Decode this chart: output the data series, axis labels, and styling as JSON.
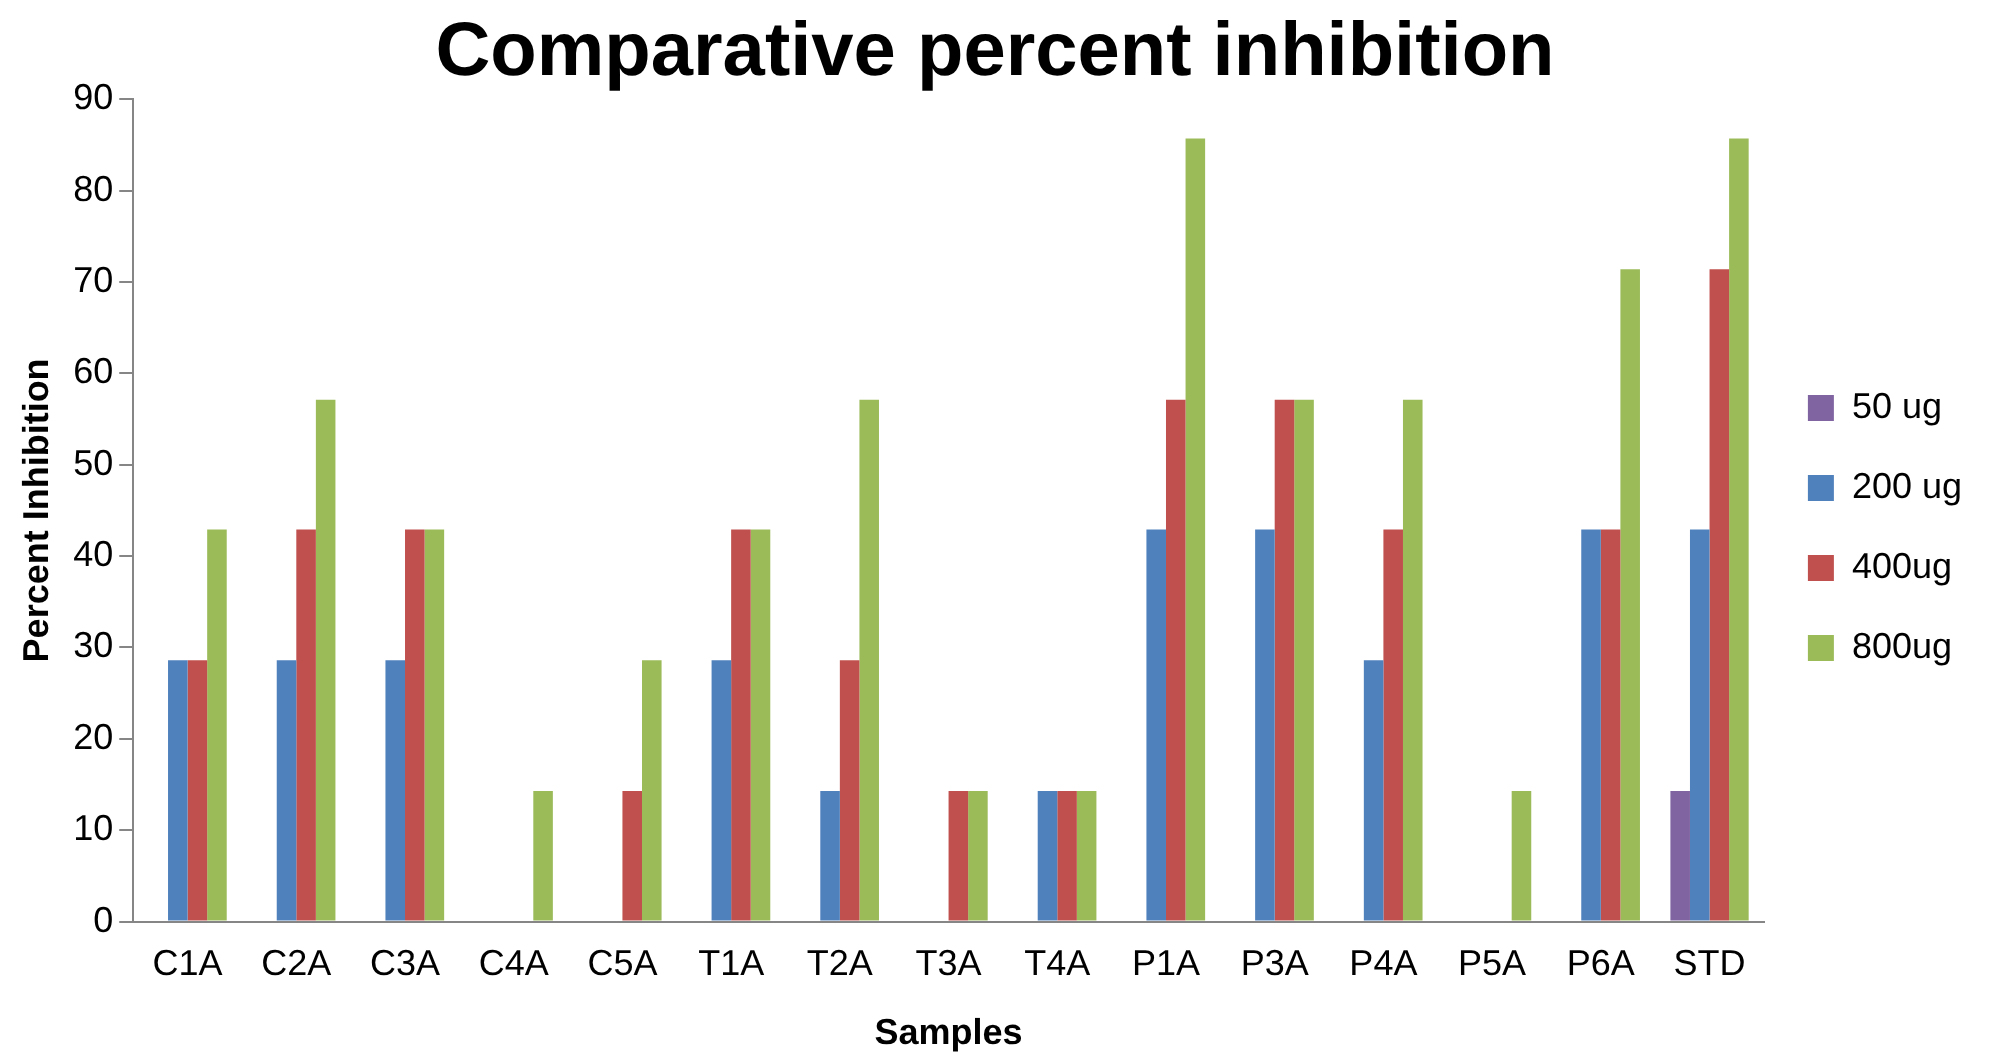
{
  "chart_data": {
    "type": "bar",
    "title": "Comparative percent inhibition",
    "xlabel": "Samples",
    "ylabel": "Percent Inhibition",
    "categories": [
      "C1A",
      "C2A",
      "C3A",
      "C4A",
      "C5A",
      "T1A",
      "T2A",
      "T3A",
      "T4A",
      "P1A",
      "P3A",
      "P4A",
      "P5A",
      "P6A",
      "STD"
    ],
    "series": [
      {
        "name": "50 ug",
        "color": "#8064a2",
        "values": [
          0,
          0,
          0,
          0,
          0,
          0,
          0,
          0,
          0,
          0,
          0,
          0,
          0,
          0,
          14.3
        ]
      },
      {
        "name": "200 ug",
        "color": "#4f81bd",
        "values": [
          28.6,
          28.6,
          28.6,
          0,
          0,
          28.6,
          14.3,
          0,
          14.3,
          42.9,
          42.9,
          28.6,
          0,
          42.9,
          42.9
        ]
      },
      {
        "name": "400ug",
        "color": "#c0504d",
        "values": [
          28.6,
          42.9,
          42.9,
          0,
          14.3,
          42.9,
          28.6,
          14.3,
          14.3,
          57.1,
          57.1,
          42.9,
          0,
          42.9,
          71.4
        ]
      },
      {
        "name": "800ug",
        "color": "#9bbb59",
        "values": [
          42.9,
          57.1,
          42.9,
          14.3,
          28.6,
          42.9,
          57.1,
          14.3,
          14.3,
          85.7,
          57.1,
          57.1,
          14.3,
          71.4,
          85.7
        ]
      }
    ],
    "ylim": [
      0,
      90
    ],
    "yticks": [
      0,
      10,
      20,
      30,
      40,
      50,
      60,
      70,
      80,
      90
    ],
    "grid": false,
    "legend": "right"
  }
}
